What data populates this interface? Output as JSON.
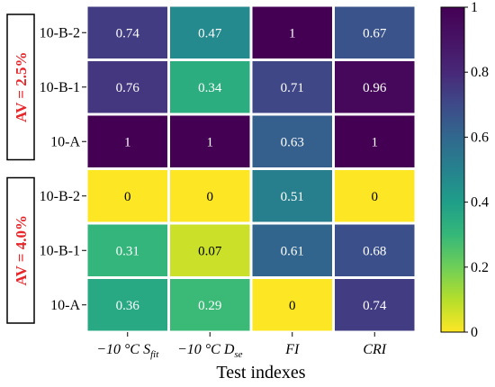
{
  "chart_data": {
    "type": "heatmap",
    "xlabel": "Test indexes",
    "x_categories": [
      {
        "prefix": "−10 °C ",
        "main": "S",
        "sub": "fit"
      },
      {
        "prefix": "−10 °C ",
        "main": "D",
        "sub": "se"
      },
      {
        "prefix": "",
        "main": "FI",
        "sub": ""
      },
      {
        "prefix": "",
        "main": "CRI",
        "sub": ""
      }
    ],
    "y_categories": [
      "10-B-2",
      "10-B-1",
      "10-A",
      "10-B-2",
      "10-B-1",
      "10-A"
    ],
    "groups": [
      {
        "label": "AV = 2.5%",
        "rows": [
          0,
          2
        ]
      },
      {
        "label": "AV = 4.0%",
        "rows": [
          3,
          5
        ]
      }
    ],
    "values": [
      [
        0.74,
        0.47,
        1,
        0.67
      ],
      [
        0.76,
        0.34,
        0.71,
        0.96
      ],
      [
        1,
        1,
        0.63,
        1
      ],
      [
        0,
        0,
        0.51,
        0
      ],
      [
        0.31,
        0.07,
        0.61,
        0.68
      ],
      [
        0.36,
        0.29,
        0,
        0.74
      ]
    ],
    "colorbar": {
      "range": [
        0,
        1
      ],
      "ticks": [
        "0",
        "0.2",
        "0.4",
        "0.6",
        "0.8",
        "1"
      ],
      "colormap": "viridis_r"
    },
    "colors": {
      "group_label": "#e8262a",
      "cell_gap": "#ffffff"
    }
  }
}
